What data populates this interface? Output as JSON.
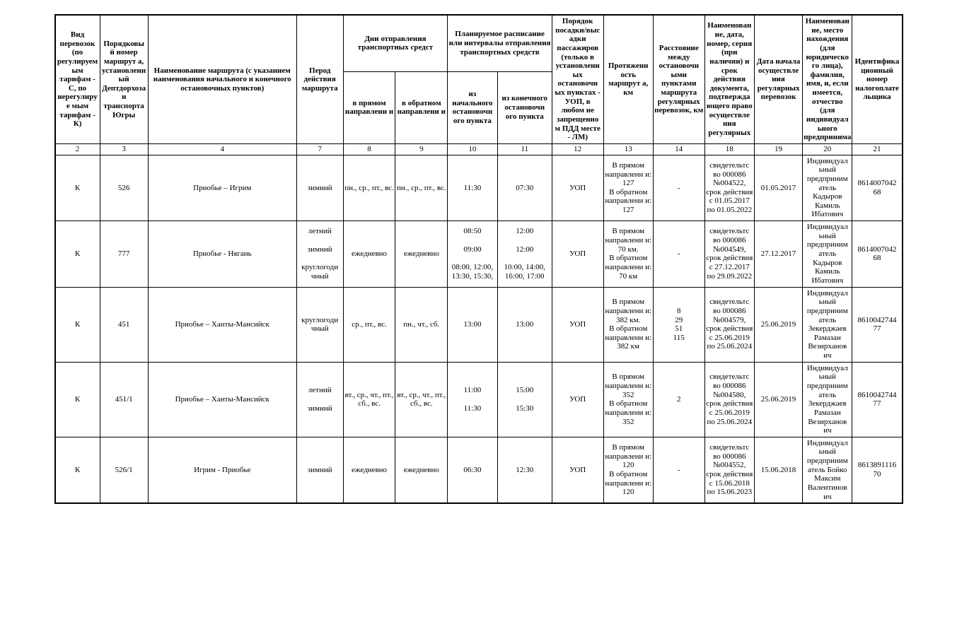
{
  "header": {
    "col2": "Вид перевозок (по регулируем ым тарифам - С,  по нерегулируе мым тарифам - К)",
    "col3": "Порядковы й номер маршрут а, установленн ый Дептдорхоза и транспорта Югры",
    "col4": "Наименование маршрута (с указанием наименования начального и конечного остановочных пунктов)",
    "col7": "Перод действия маршрута",
    "col8_9_top": "Дни отправления транспортных средст",
    "col8": "в прямом направлени и",
    "col9": "в обратном направлени и",
    "col10_11_top": "Планируемое расписание или интервалы отправления транспортных средств",
    "col10": "из начального остановочн ого пункта",
    "col11": "из конечного остановочн ого пункта",
    "col12": "Порядок посадки/выс адки пассажиров (только в установленн ых остановочн ых пунктах - УОП, в любом не запрещенно м ПДД месте - ЛМ)",
    "col13": "Протяженн ость маршрут а, км",
    "col14": "Расстояние между остановочн ыми пунктами маршрута регулярных перевозок, км",
    "col18": "Наименован ие, дата, номер, серия (при наличии) и срок действия документа, подтвержда ющего право осуществле ния регулярных",
    "col19": "Дата начала осуществле ния регулярных перевозок",
    "col20": "Наименован ие, место нахождения (для юридическо го лица), фамилия, имя, и, если имеется, отчество (для индивидуал ьного предпринима",
    "col21": "Идентифика ционный номер налогоплате льщика"
  },
  "nums": {
    "c2": "2",
    "c3": "3",
    "c4": "4",
    "c7": "7",
    "c8": "8",
    "c9": "9",
    "c10": "10",
    "c11": "11",
    "c12": "12",
    "c13": "13",
    "c14": "14",
    "c18": "18",
    "c19": "19",
    "c20": "20",
    "c21": "21"
  },
  "rows": [
    {
      "c2": "К",
      "c3": "526",
      "c4": "Приобье – Игрим",
      "c7": "зимний",
      "c8": "пн., ср., пт., вс.",
      "c9": "пн., ср., пт., вс.",
      "c10": "11:30",
      "c11": "07:30",
      "c12": "УОП",
      "c13": "В прямом направлени и: 127\nВ обратном направлени и: 127",
      "c14": "-",
      "c18": "свидетельтс во 000086 №004522, срок действия с 01.05.2017 по 01.05.2022",
      "c19": "01.05.2017",
      "c20": "Индивидуал ьный предприним атель Кадыров Камиль Ибатович",
      "c21": "8614007042 68"
    },
    {
      "c2": "К",
      "c3": "777",
      "c4": "Приобье - Нягань",
      "c7": "летний\n\nзимний\n\nкруглогоди чный",
      "c8": "ежедневно",
      "c9": "ежедневно",
      "c10": "08:50\n\n09:00\n\n08:00, 12:00, 13:30, 15:30,",
      "c11": "12:00\n\n12:00\n\n10:00, 14:00, 16:00, 17:00",
      "c12": "УОП",
      "c13": "В прямом направлени и:\n70 км.\nВ обратном направлени и:\n70 км",
      "c14": "-",
      "c18": "свидетельтс во 000086 №004549, срок действия с 27.12.2017 по 29.09.2022",
      "c19": "27.12.2017",
      "c20": "Индивидуал ьный предприним атель Кадыров Камиль Ибатович",
      "c21": "8614007042 68"
    },
    {
      "c2": "К",
      "c3": "451",
      "c4": "Приобье – Ханты-Мансийск",
      "c7": "круглогоди чный",
      "c8": "ср., пт., вс.",
      "c9": "пн., чт., сб.",
      "c10": "13:00",
      "c11": "13:00",
      "c12": "УОП",
      "c13": "В прямом направлени и: 382 км.\nВ обратном направлени и: 382 км",
      "c14": "8\n29\n51\n115",
      "c18": "свидетельтс во 000086 №004579, срок действия с 25.06.2019 по 25.06.2024",
      "c19": "25.06.2019",
      "c20": "Индивидуал ьный предприним атель Зекерджаев Рамазан Везирханов ич",
      "c21": "8610042744 77"
    },
    {
      "c2": "К",
      "c3": "451/1",
      "c4": "Приобье – Ханты-Мансийск",
      "c7": "летний\n\nзимний",
      "c8": "вт., ср., чт., пт., сб., вс.",
      "c9": "вт., ср., чт., пт., сб., вс.",
      "c10": "11:00\n\n11:30",
      "c11": "15:00\n\n15:30",
      "c12": "УОП",
      "c13": "В прямом направлени и: 352\nВ обратном направлени и: 352",
      "c14": "2",
      "c18": "свидетельтс во 000086 №004580, срок действия с 25.06.2019 по 25.06.2024",
      "c19": "25.06.2019",
      "c20": "Индивидуал ьный предприним атель Зекерджаев Рамазан Везирханов ич",
      "c21": "8610042744 77"
    },
    {
      "c2": "К",
      "c3": "526/1",
      "c4": "Игрим - Приобье",
      "c7": "зимний",
      "c8": "ежедневно",
      "c9": "ежедневно",
      "c10": "06:30",
      "c11": "12:30",
      "c12": "УОП",
      "c13": "В прямом направлени и: 120\nВ обратном направлени и: 120",
      "c14": "-",
      "c18": "свидетельтс во 000086 №004552, срок действия с 15.06.2018 по 15.06.2023",
      "c19": "15.06.2018",
      "c20": "Индивидуал ьный предприним атель Бойко Максим Валентинов ич",
      "c21": "8613891116 70"
    }
  ]
}
